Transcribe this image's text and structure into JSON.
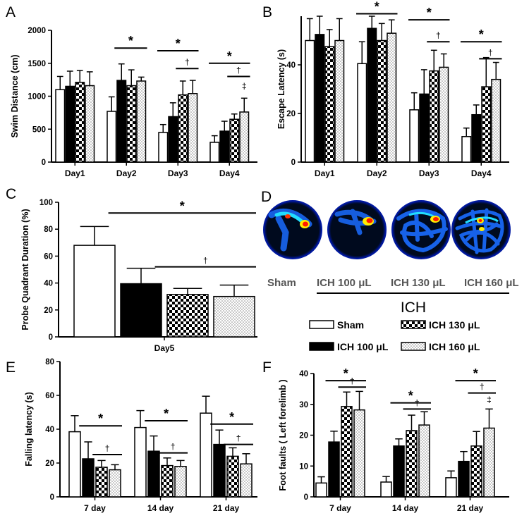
{
  "groups": [
    "Sham",
    "ICH 100 μL",
    "ICH 130 μL",
    "ICH 160 μL"
  ],
  "group_title": "ICH",
  "heatmap_labels": [
    "Sham",
    "ICH 100 μL",
    "ICH 130 μL",
    "ICH 160 μL"
  ],
  "chart_data": [
    {
      "panel": "A",
      "type": "bar",
      "ylabel": "Swim Distance (cm)",
      "xlabel": "",
      "ylim": [
        0,
        2000
      ],
      "yticks": [
        0,
        500,
        1000,
        1500,
        2000
      ],
      "categories": [
        "Day1",
        "Day2",
        "Day3",
        "Day4"
      ],
      "series": [
        {
          "name": "Sham",
          "values": [
            1100,
            770,
            450,
            300
          ],
          "errors": [
            200,
            220,
            120,
            100
          ]
        },
        {
          "name": "ICH 100 μL",
          "values": [
            1150,
            1240,
            690,
            470
          ],
          "errors": [
            230,
            250,
            210,
            150
          ]
        },
        {
          "name": "ICH 130 μL",
          "values": [
            1210,
            1160,
            1020,
            650
          ],
          "errors": [
            180,
            240,
            210,
            80
          ]
        },
        {
          "name": "ICH 160 μL",
          "values": [
            1160,
            1230,
            1040,
            760
          ],
          "errors": [
            210,
            60,
            200,
            210
          ]
        }
      ],
      "annotations": [
        {
          "text": "*",
          "category": 1,
          "from": 1,
          "to": 3,
          "y": 1730
        },
        {
          "text": "*",
          "category": 2,
          "from": 0,
          "to": 3,
          "y": 1690
        },
        {
          "text": "†",
          "category": 2,
          "from": 2,
          "to": 3,
          "y": 1420
        },
        {
          "text": "*",
          "category": 3,
          "from": 0,
          "to": 3,
          "y": 1500
        },
        {
          "text": "†",
          "category": 3,
          "from": 2,
          "to": 3,
          "y": 1300
        },
        {
          "text": "‡",
          "category": 3,
          "from": 3,
          "to": 3,
          "y": 1060
        }
      ]
    },
    {
      "panel": "B",
      "type": "bar",
      "ylabel": "Escape Latency (s)",
      "xlabel": "",
      "ylim": [
        0,
        60
      ],
      "yticks": [
        0,
        20,
        40
      ],
      "categories": [
        "Day1",
        "Day2",
        "Day3",
        "Day4"
      ],
      "series": [
        {
          "name": "Sham",
          "values": [
            50,
            40.5,
            21.5,
            10.5
          ],
          "errors": [
            9,
            9,
            7,
            3.5
          ]
        },
        {
          "name": "ICH 100 μL",
          "values": [
            52.5,
            55,
            28,
            19.5
          ],
          "errors": [
            7.5,
            5,
            10,
            4
          ]
        },
        {
          "name": "ICH 130 μL",
          "values": [
            47.5,
            50,
            37.5,
            31
          ],
          "errors": [
            7,
            7,
            8.5,
            12
          ]
        },
        {
          "name": "ICH 160 μL",
          "values": [
            50,
            53,
            39,
            34
          ],
          "errors": [
            9,
            5.5,
            5.5,
            7
          ]
        }
      ],
      "annotations": [
        {
          "text": "*",
          "category": 1,
          "from": 0,
          "to": 3,
          "y": 61
        },
        {
          "text": "*",
          "category": 2,
          "from": 0,
          "to": 3,
          "y": 58.5
        },
        {
          "text": "†",
          "category": 2,
          "from": 2,
          "to": 3,
          "y": 49.5
        },
        {
          "text": "*",
          "category": 3,
          "from": 0,
          "to": 3,
          "y": 49.5
        },
        {
          "text": "†",
          "category": 3,
          "from": 2,
          "to": 3,
          "y": 42.5
        }
      ]
    },
    {
      "panel": "C",
      "type": "bar",
      "ylabel": "Probe Quadrant Duration (%)",
      "xlabel": "",
      "ylim": [
        0,
        100
      ],
      "yticks": [
        0,
        20,
        40,
        60,
        80,
        100
      ],
      "categories": [
        "Day5"
      ],
      "series": [
        {
          "name": "Sham",
          "values": [
            68
          ],
          "errors": [
            14
          ]
        },
        {
          "name": "ICH 100 μL",
          "values": [
            39.5
          ],
          "errors": [
            11.5
          ]
        },
        {
          "name": "ICH 130 μL",
          "values": [
            31.5
          ],
          "errors": [
            4.5
          ]
        },
        {
          "name": "ICH 160 μL",
          "values": [
            30
          ],
          "errors": [
            8.5
          ]
        }
      ],
      "annotations": [
        {
          "text": "*",
          "category": 0,
          "from": 1,
          "to": 3,
          "y": 92
        },
        {
          "text": "†",
          "category": 0,
          "from": 2,
          "to": 3,
          "y": 52
        }
      ]
    },
    {
      "panel": "E",
      "type": "bar",
      "ylabel": "Falling latency (s)",
      "xlabel": "",
      "ylim": [
        0,
        80
      ],
      "yticks": [
        0,
        20,
        40,
        60,
        80
      ],
      "categories": [
        "7 day",
        "14 day",
        "21 day"
      ],
      "series": [
        {
          "name": "Sham",
          "values": [
            38.5,
            41,
            49.5
          ],
          "errors": [
            9.5,
            10,
            10
          ]
        },
        {
          "name": "ICH 100 μL",
          "values": [
            22.5,
            27,
            31
          ],
          "errors": [
            10,
            9,
            8.5
          ]
        },
        {
          "name": "ICH 130 μL",
          "values": [
            17.5,
            18.5,
            24
          ],
          "errors": [
            4,
            4.5,
            5
          ]
        },
        {
          "name": "ICH 160 μL",
          "values": [
            16,
            18,
            19.5
          ],
          "errors": [
            3,
            3.5,
            6
          ]
        }
      ],
      "annotations": [
        {
          "text": "*",
          "category": 0,
          "from": 1,
          "to": 3,
          "y": 42
        },
        {
          "text": "†",
          "category": 0,
          "from": 2,
          "to": 3,
          "y": 25
        },
        {
          "text": "*",
          "category": 1,
          "from": 1,
          "to": 3,
          "y": 45
        },
        {
          "text": "†",
          "category": 1,
          "from": 2,
          "to": 3,
          "y": 26
        },
        {
          "text": "*",
          "category": 2,
          "from": 1,
          "to": 3,
          "y": 43
        },
        {
          "text": "†",
          "category": 2,
          "from": 2,
          "to": 3,
          "y": 31
        }
      ]
    },
    {
      "panel": "F",
      "type": "bar",
      "ylabel": "Foot faults ( Left forelimb )",
      "xlabel": "",
      "ylim": [
        0,
        40
      ],
      "yticks": [
        0,
        10,
        20,
        30,
        40
      ],
      "categories": [
        "7 day",
        "14 day",
        "21 day"
      ],
      "series": [
        {
          "name": "Sham",
          "values": [
            4.5,
            4.8,
            6.2
          ],
          "errors": [
            2,
            1.8,
            2.2
          ]
        },
        {
          "name": "ICH 100 μL",
          "values": [
            17.8,
            16.5,
            11.5
          ],
          "errors": [
            3.5,
            2.3,
            3.2
          ]
        },
        {
          "name": "ICH 130 μL",
          "values": [
            29.3,
            21.5,
            16.5
          ],
          "errors": [
            4.7,
            5,
            4.7
          ]
        },
        {
          "name": "ICH 160 μL",
          "values": [
            28.2,
            23.3,
            22.3
          ],
          "errors": [
            6,
            4.3,
            6.2
          ]
        }
      ],
      "annotations": [
        {
          "text": "*",
          "category": 0,
          "from": 1,
          "to": 3,
          "y": 37.7
        },
        {
          "text": "†",
          "category": 0,
          "from": 2,
          "to": 3,
          "y": 35.6
        },
        {
          "text": "*",
          "category": 1,
          "from": 1,
          "to": 3,
          "y": 30.5
        },
        {
          "text": "†",
          "category": 1,
          "from": 2,
          "to": 3,
          "y": 28.5
        },
        {
          "text": "*",
          "category": 2,
          "from": 1,
          "to": 3,
          "y": 37.7
        },
        {
          "text": "†",
          "category": 2,
          "from": 2,
          "to": 3,
          "y": 33.7
        },
        {
          "text": "‡",
          "category": 2,
          "from": 3,
          "to": 3,
          "y": 29.5
        }
      ]
    }
  ]
}
